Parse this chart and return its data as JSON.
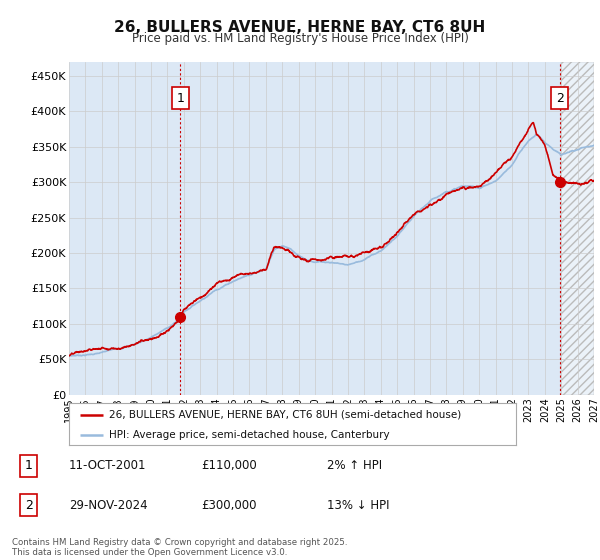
{
  "title_line1": "26, BULLERS AVENUE, HERNE BAY, CT6 8UH",
  "title_line2": "Price paid vs. HM Land Registry's House Price Index (HPI)",
  "legend_label_red": "26, BULLERS AVENUE, HERNE BAY, CT6 8UH (semi-detached house)",
  "legend_label_blue": "HPI: Average price, semi-detached house, Canterbury",
  "annotation1_date": "11-OCT-2001",
  "annotation1_price": "£110,000",
  "annotation1_hpi": "2% ↑ HPI",
  "annotation2_date": "29-NOV-2024",
  "annotation2_price": "£300,000",
  "annotation2_hpi": "13% ↓ HPI",
  "footer": "Contains HM Land Registry data © Crown copyright and database right 2025.\nThis data is licensed under the Open Government Licence v3.0.",
  "ylim": [
    0,
    470000
  ],
  "yticks": [
    0,
    50000,
    100000,
    150000,
    200000,
    250000,
    300000,
    350000,
    400000,
    450000
  ],
  "ytick_labels": [
    "£0",
    "£50K",
    "£100K",
    "£150K",
    "£200K",
    "£250K",
    "£300K",
    "£350K",
    "£400K",
    "£450K"
  ],
  "color_red": "#cc0000",
  "color_blue": "#99bbdd",
  "color_grid": "#cccccc",
  "background_chart": "#dce8f5",
  "background_fig": "#ffffff",
  "color_annot_border": "#cc0000",
  "marker1_x": 2001.79,
  "marker1_y": 110000,
  "marker2_x": 2024.91,
  "marker2_y": 300000,
  "xmin": 1995,
  "xmax": 2027,
  "future_start": 2025.0
}
